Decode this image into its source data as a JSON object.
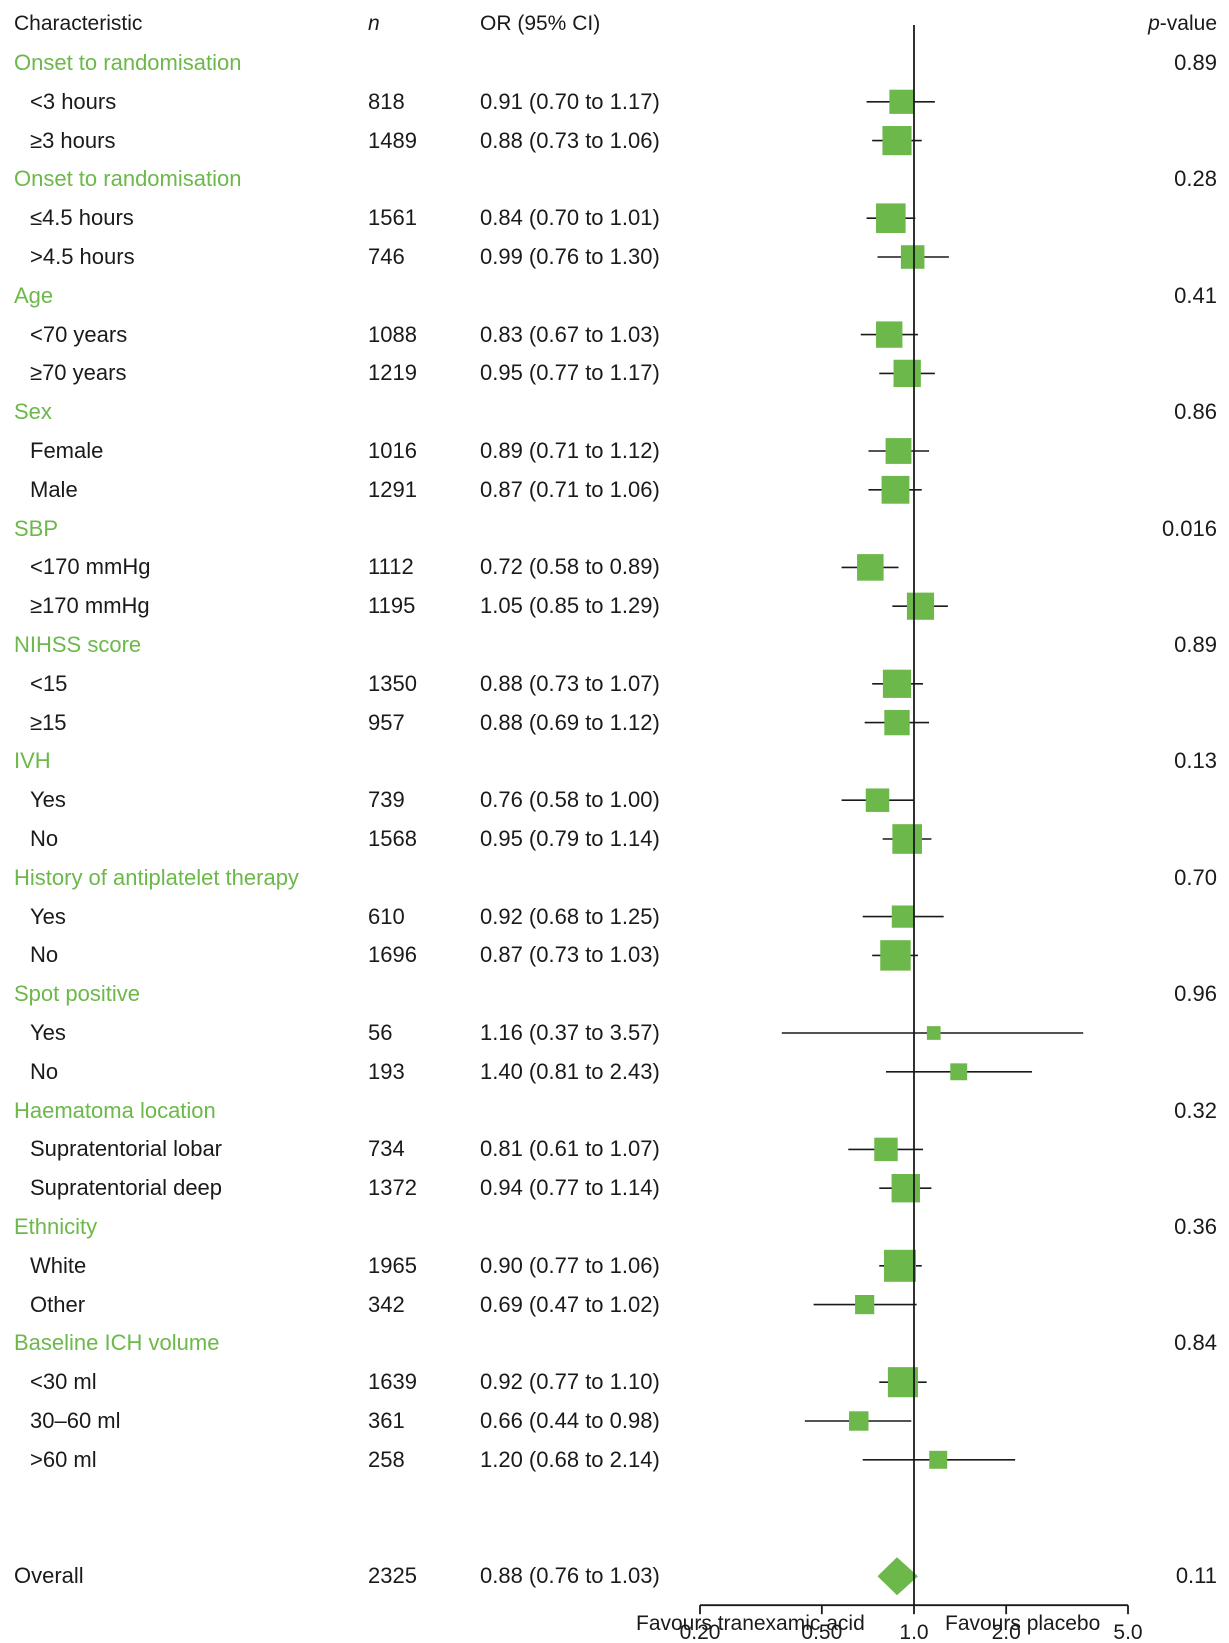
{
  "headers": {
    "characteristic": "Characteristic",
    "n": "n",
    "or": "OR (95% CI)",
    "p_italic": "p",
    "p_rest": "-value"
  },
  "footer": {
    "favours_left": "Favours tranexamic acid",
    "favours_right": "Favours placebo"
  },
  "colors": {
    "marker": "#6cb84a",
    "group_label": "#6cb84a",
    "text": "#1a1a1a",
    "line": "#1a1a1a"
  },
  "chart_data": {
    "type": "forest",
    "x_scale": "log",
    "xlim": [
      0.2,
      5.0
    ],
    "reference_line": 1.0,
    "x_ticks": [
      0.2,
      0.5,
      1.0,
      2.0,
      5.0
    ],
    "x_tick_labels": [
      "0.20",
      "0.50",
      "1.0",
      "2.0",
      "5.0"
    ],
    "rows": [
      {
        "kind": "group",
        "label": "Onset to randomisation",
        "p": "0.89"
      },
      {
        "kind": "sub",
        "label": "<3 hours",
        "n": "818",
        "or_text": "0.91 (0.70 to 1.17)",
        "or": 0.91,
        "lo": 0.7,
        "hi": 1.17,
        "weight": 818
      },
      {
        "kind": "sub",
        "label": "≥3 hours",
        "n": "1489",
        "or_text": "0.88 (0.73 to 1.06)",
        "or": 0.88,
        "lo": 0.73,
        "hi": 1.06,
        "weight": 1489
      },
      {
        "kind": "group",
        "label": "Onset to randomisation",
        "p": "0.28"
      },
      {
        "kind": "sub",
        "label": "≤4.5 hours",
        "n": "1561",
        "or_text": "0.84 (0.70 to 1.01)",
        "or": 0.84,
        "lo": 0.7,
        "hi": 1.01,
        "weight": 1561
      },
      {
        "kind": "sub",
        "label": ">4.5 hours",
        "n": "746",
        "or_text": "0.99 (0.76 to 1.30)",
        "or": 0.99,
        "lo": 0.76,
        "hi": 1.3,
        "weight": 746
      },
      {
        "kind": "group",
        "label": "Age",
        "p": "0.41"
      },
      {
        "kind": "sub",
        "label": "<70 years",
        "n": "1088",
        "or_text": "0.83 (0.67 to 1.03)",
        "or": 0.83,
        "lo": 0.67,
        "hi": 1.03,
        "weight": 1088
      },
      {
        "kind": "sub",
        "label": "≥70 years",
        "n": "1219",
        "or_text": "0.95 (0.77 to 1.17)",
        "or": 0.95,
        "lo": 0.77,
        "hi": 1.17,
        "weight": 1219
      },
      {
        "kind": "group",
        "label": "Sex",
        "p": "0.86"
      },
      {
        "kind": "sub",
        "label": "Female",
        "n": "1016",
        "or_text": "0.89 (0.71 to 1.12)",
        "or": 0.89,
        "lo": 0.71,
        "hi": 1.12,
        "weight": 1016
      },
      {
        "kind": "sub",
        "label": "Male",
        "n": "1291",
        "or_text": "0.87 (0.71 to 1.06)",
        "or": 0.87,
        "lo": 0.71,
        "hi": 1.06,
        "weight": 1291
      },
      {
        "kind": "group",
        "label": "SBP",
        "p": "0.016"
      },
      {
        "kind": "sub",
        "label": "<170 mmHg",
        "n": "1112",
        "or_text": "0.72 (0.58 to 0.89)",
        "or": 0.72,
        "lo": 0.58,
        "hi": 0.89,
        "weight": 1112
      },
      {
        "kind": "sub",
        "label": "≥170 mmHg",
        "n": "1195",
        "or_text": "1.05 (0.85 to 1.29)",
        "or": 1.05,
        "lo": 0.85,
        "hi": 1.29,
        "weight": 1195
      },
      {
        "kind": "group",
        "label": "NIHSS score",
        "p": "0.89"
      },
      {
        "kind": "sub",
        "label": "<15",
        "n": "1350",
        "or_text": "0.88 (0.73 to 1.07)",
        "or": 0.88,
        "lo": 0.73,
        "hi": 1.07,
        "weight": 1350
      },
      {
        "kind": "sub",
        "label": "≥15",
        "n": "957",
        "or_text": "0.88 (0.69 to 1.12)",
        "or": 0.88,
        "lo": 0.69,
        "hi": 1.12,
        "weight": 957
      },
      {
        "kind": "group",
        "label": "IVH",
        "p": "0.13"
      },
      {
        "kind": "sub",
        "label": "Yes",
        "n": "739",
        "or_text": "0.76 (0.58 to 1.00)",
        "or": 0.76,
        "lo": 0.58,
        "hi": 1.0,
        "weight": 739
      },
      {
        "kind": "sub",
        "label": "No",
        "n": "1568",
        "or_text": "0.95 (0.79 to 1.14)",
        "or": 0.95,
        "lo": 0.79,
        "hi": 1.14,
        "weight": 1568
      },
      {
        "kind": "group",
        "label": "History of antiplatelet therapy",
        "p": "0.70"
      },
      {
        "kind": "sub",
        "label": "Yes",
        "n": "610",
        "or_text": "0.92 (0.68 to 1.25)",
        "or": 0.92,
        "lo": 0.68,
        "hi": 1.25,
        "weight": 610
      },
      {
        "kind": "sub",
        "label": "No",
        "n": "1696",
        "or_text": "0.87 (0.73 to 1.03)",
        "or": 0.87,
        "lo": 0.73,
        "hi": 1.03,
        "weight": 1696
      },
      {
        "kind": "group",
        "label": "Spot positive",
        "p": "0.96"
      },
      {
        "kind": "sub",
        "label": "Yes",
        "n": "56",
        "or_text": "1.16 (0.37 to 3.57)",
        "or": 1.16,
        "lo": 0.37,
        "hi": 3.57,
        "weight": 56
      },
      {
        "kind": "sub",
        "label": "No",
        "n": "193",
        "or_text": "1.40 (0.81 to 2.43)",
        "or": 1.4,
        "lo": 0.81,
        "hi": 2.43,
        "weight": 193
      },
      {
        "kind": "group",
        "label": "Haematoma location",
        "p": "0.32"
      },
      {
        "kind": "sub",
        "label": "Supratentorial lobar",
        "n": "734",
        "or_text": "0.81 (0.61 to 1.07)",
        "or": 0.81,
        "lo": 0.61,
        "hi": 1.07,
        "weight": 734
      },
      {
        "kind": "sub",
        "label": "Supratentorial deep",
        "n": "1372",
        "or_text": "0.94 (0.77 to 1.14)",
        "or": 0.94,
        "lo": 0.77,
        "hi": 1.14,
        "weight": 1372
      },
      {
        "kind": "group",
        "label": "Ethnicity",
        "p": "0.36"
      },
      {
        "kind": "sub",
        "label": "White",
        "n": "1965",
        "or_text": "0.90 (0.77 to 1.06)",
        "or": 0.9,
        "lo": 0.77,
        "hi": 1.06,
        "weight": 1965
      },
      {
        "kind": "sub",
        "label": "Other",
        "n": "342",
        "or_text": "0.69 (0.47 to 1.02)",
        "or": 0.69,
        "lo": 0.47,
        "hi": 1.02,
        "weight": 342
      },
      {
        "kind": "group",
        "label": "Baseline ICH volume",
        "p": "0.84"
      },
      {
        "kind": "sub",
        "label": "<30 ml",
        "n": "1639",
        "or_text": "0.92 (0.77 to 1.10)",
        "or": 0.92,
        "lo": 0.77,
        "hi": 1.1,
        "weight": 1639
      },
      {
        "kind": "sub",
        "label": "30–60 ml",
        "n": "361",
        "or_text": "0.66 (0.44 to 0.98)",
        "or": 0.66,
        "lo": 0.44,
        "hi": 0.98,
        "weight": 361
      },
      {
        "kind": "sub",
        "label": ">60 ml",
        "n": "258",
        "or_text": "1.20 (0.68 to 2.14)",
        "or": 1.2,
        "lo": 0.68,
        "hi": 2.14,
        "weight": 258
      },
      {
        "kind": "overall",
        "label": "Overall",
        "n": "2325",
        "or_text": "0.88 (0.76 to 1.03)",
        "or": 0.88,
        "lo": 0.76,
        "hi": 1.03,
        "p": "0.11"
      }
    ]
  }
}
